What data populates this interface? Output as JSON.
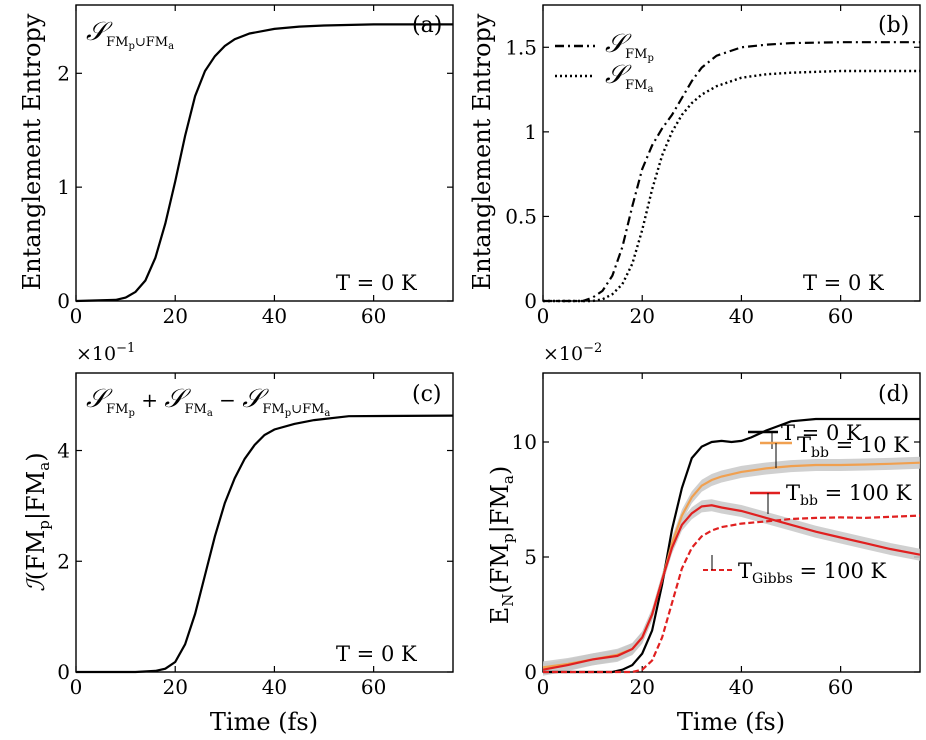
{
  "chart_data": [
    {
      "panel_label": "(a)",
      "type": "line",
      "ylabel": "Entanglement Entropy",
      "xlabel": "",
      "xlim": [
        0,
        76
      ],
      "ylim": [
        0,
        2.6
      ],
      "xticks": [
        0,
        20,
        40,
        60
      ],
      "yticks": [
        0,
        1,
        2
      ],
      "corner_text": "T = 0 K",
      "series": [
        {
          "name": "S_FMp∪FMa",
          "style": "solid",
          "color": "#000000",
          "x": [
            0,
            8,
            10,
            12,
            14,
            16,
            18,
            20,
            22,
            24,
            26,
            28,
            30,
            32,
            35,
            40,
            45,
            50,
            60,
            76
          ],
          "y": [
            0,
            0.01,
            0.03,
            0.08,
            0.18,
            0.38,
            0.68,
            1.05,
            1.45,
            1.8,
            2.02,
            2.15,
            2.24,
            2.3,
            2.35,
            2.39,
            2.41,
            2.42,
            2.43,
            2.43
          ]
        }
      ]
    },
    {
      "panel_label": "(b)",
      "type": "line",
      "ylabel": "Entanglement Entropy",
      "xlabel": "",
      "xlim": [
        0,
        76
      ],
      "ylim": [
        0,
        1.75
      ],
      "xticks": [
        0,
        20,
        40,
        60
      ],
      "yticks": [
        0,
        0.5,
        1,
        1.5
      ],
      "ytick_labels": [
        "0",
        "0.5",
        "1",
        "1.5"
      ],
      "corner_text": "T = 0 K",
      "legend_position": "top-left",
      "series": [
        {
          "name": "S_FMp",
          "style": "dashdot",
          "color": "#000000",
          "x": [
            0,
            8,
            10,
            12,
            14,
            16,
            18,
            20,
            22,
            24,
            26,
            28,
            30,
            32,
            35,
            40,
            45,
            50,
            60,
            76
          ],
          "y": [
            0,
            0.0,
            0.02,
            0.06,
            0.15,
            0.32,
            0.56,
            0.78,
            0.92,
            1.02,
            1.1,
            1.2,
            1.3,
            1.38,
            1.45,
            1.5,
            1.515,
            1.525,
            1.53,
            1.53
          ]
        },
        {
          "name": "S_FMa",
          "style": "dotted",
          "color": "#000000",
          "x": [
            0,
            10,
            12,
            14,
            16,
            18,
            20,
            22,
            24,
            26,
            28,
            30,
            32,
            35,
            40,
            45,
            50,
            60,
            76
          ],
          "y": [
            0,
            0.0,
            0.01,
            0.04,
            0.1,
            0.22,
            0.42,
            0.66,
            0.86,
            1.0,
            1.1,
            1.17,
            1.22,
            1.27,
            1.32,
            1.34,
            1.35,
            1.36,
            1.36
          ]
        }
      ]
    },
    {
      "panel_label": "(c)",
      "type": "line",
      "ylabel": "I(FMp|FMa)",
      "xlabel": "Time (fs)",
      "multiplier": "×10⁻¹",
      "xlim": [
        0,
        76
      ],
      "ylim": [
        0,
        5.4
      ],
      "xticks": [
        0,
        20,
        40,
        60
      ],
      "yticks": [
        0,
        2,
        4
      ],
      "corner_text": "T = 0 K",
      "series": [
        {
          "name": "S_FMp + S_FMa − S_FMp∪FMa",
          "style": "solid",
          "color": "#000000",
          "x": [
            0,
            12,
            16,
            18,
            20,
            22,
            24,
            26,
            28,
            30,
            32,
            34,
            36,
            38,
            40,
            44,
            48,
            55,
            76
          ],
          "y": [
            0,
            0.0,
            0.02,
            0.06,
            0.18,
            0.5,
            1.05,
            1.75,
            2.45,
            3.05,
            3.5,
            3.85,
            4.1,
            4.28,
            4.38,
            4.48,
            4.55,
            4.62,
            4.63
          ]
        }
      ]
    },
    {
      "panel_label": "(d)",
      "type": "line",
      "ylabel": "E_N (FMp|FMa)",
      "xlabel": "Time (fs)",
      "multiplier": "×10⁻²",
      "xlim": [
        0,
        76
      ],
      "ylim": [
        0,
        13
      ],
      "xticks": [
        0,
        20,
        40,
        60
      ],
      "yticks": [
        0,
        5,
        10
      ],
      "series": [
        {
          "name": "T = 0 K",
          "style": "solid",
          "color": "#000000",
          "x": [
            0,
            14,
            16,
            18,
            20,
            22,
            24,
            26,
            28,
            30,
            32,
            34,
            36,
            38,
            40,
            42,
            45,
            50,
            55,
            76
          ],
          "y": [
            0,
            0.0,
            0.1,
            0.3,
            0.8,
            1.8,
            3.8,
            6.2,
            8.0,
            9.3,
            9.8,
            10.0,
            10.05,
            10.0,
            10.05,
            10.2,
            10.5,
            10.9,
            11.0,
            11.0
          ]
        },
        {
          "name": "T_bb = 10 K",
          "style": "solid",
          "color": "#f0a050",
          "band": true,
          "x": [
            0,
            5,
            10,
            15,
            18,
            20,
            22,
            24,
            26,
            28,
            30,
            32,
            34,
            36,
            40,
            45,
            50,
            55,
            60,
            65,
            70,
            76
          ],
          "y": [
            0.2,
            0.35,
            0.55,
            0.75,
            1.0,
            1.5,
            2.5,
            4.0,
            5.6,
            6.8,
            7.6,
            8.1,
            8.35,
            8.5,
            8.7,
            8.85,
            8.95,
            9.0,
            9.0,
            9.02,
            9.05,
            9.1
          ]
        },
        {
          "name": "T_bb = 100 K",
          "style": "solid",
          "color": "#e02020",
          "band": true,
          "x": [
            0,
            5,
            10,
            15,
            18,
            20,
            22,
            24,
            26,
            28,
            30,
            32,
            34,
            36,
            40,
            45,
            50,
            55,
            60,
            65,
            70,
            76
          ],
          "y": [
            0.1,
            0.3,
            0.55,
            0.7,
            1.0,
            1.5,
            2.5,
            4.0,
            5.4,
            6.4,
            6.9,
            7.2,
            7.25,
            7.15,
            7.0,
            6.7,
            6.4,
            6.1,
            5.85,
            5.6,
            5.35,
            5.1
          ]
        },
        {
          "name": "T_Gibbs = 100 K",
          "style": "dashed",
          "color": "#e02020",
          "x": [
            0,
            18,
            20,
            22,
            24,
            26,
            28,
            30,
            32,
            34,
            36,
            40,
            45,
            50,
            55,
            60,
            65,
            70,
            76
          ],
          "y": [
            0,
            0.0,
            0.1,
            0.5,
            1.5,
            3.0,
            4.5,
            5.4,
            5.9,
            6.15,
            6.3,
            6.45,
            6.55,
            6.65,
            6.7,
            6.72,
            6.7,
            6.75,
            6.8
          ]
        }
      ]
    }
  ],
  "labels": {
    "a_panel": "(a)",
    "b_panel": "(b)",
    "c_panel": "(c)",
    "d_panel": "(d)",
    "temp_a": "T = 0 K",
    "temp_b": "T = 0 K",
    "temp_c": "T = 0 K",
    "ylabel_ab": "Entanglement Entropy",
    "xlabel": "Time (fs)",
    "mult_c": "×10",
    "mult_c_exp": "−1",
    "mult_d": "×10",
    "mult_d_exp": "−2",
    "S": "𝒮",
    "FMp": "FM",
    "p": "p",
    "a": "a",
    "union": "∪",
    "plus": " + ",
    "minus": " − ",
    "I": "ℐ",
    "lp": "(",
    "bar": "|",
    "rp": ")",
    "EN": "E",
    "N": "N",
    "T0": "T = 0 K",
    "Tbb": "T",
    "bb": "bb",
    "Tbb10_val": " = 10 K",
    "Tbb100_val": " = 100 K",
    "Gibbs": "Gibbs",
    "Gibbs_val": " = 100 K"
  }
}
